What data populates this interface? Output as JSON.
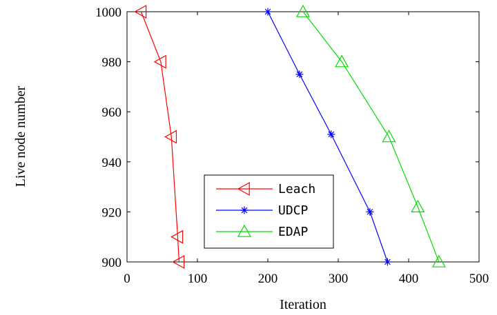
{
  "chart_data": {
    "type": "line",
    "xlabel": "Iteration",
    "ylabel": "Live node number",
    "xlim": [
      0,
      500
    ],
    "ylim": [
      900,
      1000
    ],
    "xticks": [
      "0",
      "100",
      "200",
      "300",
      "400",
      "500"
    ],
    "yticks": [
      "900",
      "920",
      "940",
      "960",
      "980",
      "1000"
    ],
    "grid": false,
    "legend_position": "bottom-center",
    "series": [
      {
        "name": "Leach",
        "color": "#ff0000",
        "marker": "triangle-left",
        "x": [
          20,
          48,
          63,
          72,
          74
        ],
        "y": [
          1000,
          980,
          950,
          910,
          900
        ]
      },
      {
        "name": "UDCP",
        "color": "#0000ff",
        "marker": "asterisk",
        "x": [
          200,
          245,
          290,
          345,
          370
        ],
        "y": [
          1000,
          975,
          951,
          920,
          900
        ]
      },
      {
        "name": "EDAP",
        "color": "#00dd00",
        "marker": "triangle-up",
        "x": [
          250,
          305,
          372,
          413,
          443
        ],
        "y": [
          1000,
          980,
          950,
          922,
          900
        ]
      }
    ]
  }
}
